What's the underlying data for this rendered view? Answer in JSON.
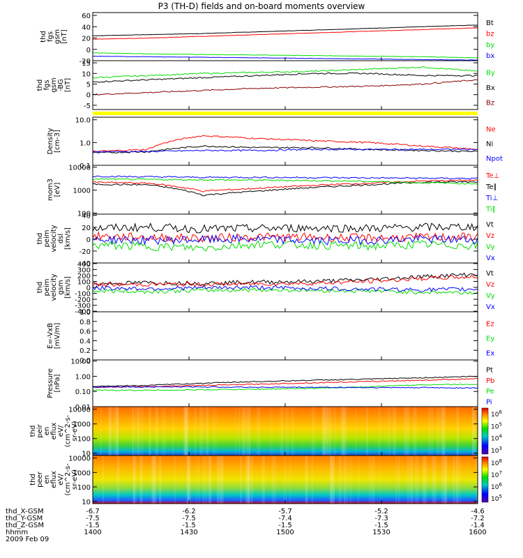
{
  "title": "P3 (TH-D) fields and on-board moments overview",
  "date_label": "2009 Feb 09",
  "colors": {
    "black": "#000000",
    "red": "#ff0000",
    "green": "#00dd00",
    "blue": "#0000ff",
    "darkred": "#880000",
    "yellow": "#ffff00"
  },
  "chart_data": [
    {
      "type": "line",
      "ylabel": [
        "thd",
        "fgs",
        "gsm",
        "[nT]"
      ],
      "yticks": [
        "60",
        "40",
        "20",
        "0",
        "-20"
      ],
      "legend": [
        {
          "label": "Bt",
          "color": "#000000"
        },
        {
          "label": "bz",
          "color": "#ff0000"
        },
        {
          "label": "by",
          "color": "#00dd00"
        },
        {
          "label": "bx",
          "color": "#0000ff"
        }
      ],
      "series": [
        {
          "name": "Bt",
          "color": "#000000",
          "values": [
            24,
            26,
            28,
            31,
            34,
            37,
            40,
            43
          ]
        },
        {
          "name": "bz",
          "color": "#ff0000",
          "values": [
            18,
            20,
            23,
            26,
            29,
            32,
            35,
            38
          ]
        },
        {
          "name": "by",
          "color": "#00dd00",
          "values": [
            -6,
            -8,
            -9,
            -10,
            -11,
            -12,
            -13,
            -15
          ]
        },
        {
          "name": "bx",
          "color": "#0000ff",
          "values": [
            -12,
            -13,
            -14,
            -15,
            -16,
            -17,
            -18,
            -19
          ]
        }
      ]
    },
    {
      "type": "line",
      "ylabel": [
        "thd",
        "fgs",
        "gsm",
        "-BG",
        "[nT]"
      ],
      "yticks": [
        "15",
        "10",
        "5",
        "0",
        "-5"
      ],
      "legend": [
        {
          "label": "By",
          "color": "#00dd00"
        },
        {
          "label": "Bx",
          "color": "#000000"
        },
        {
          "label": "Bz",
          "color": "#880000"
        }
      ],
      "series": [
        {
          "name": "By",
          "color": "#00dd00",
          "values": [
            8,
            9,
            10,
            10.5,
            11,
            12,
            13,
            11
          ]
        },
        {
          "name": "Bx",
          "color": "#000000",
          "values": [
            6,
            7,
            8,
            9,
            10,
            10,
            9,
            9
          ]
        },
        {
          "name": "Bz",
          "color": "#880000",
          "values": [
            0,
            1,
            2,
            3,
            3.5,
            4,
            5,
            7
          ]
        }
      ]
    },
    {
      "type": "line",
      "ylabel": [
        "Density",
        "[cm-3]"
      ],
      "yticks": [
        "10.0",
        "1.0",
        "0.1"
      ],
      "legend": [
        {
          "label": "Ne",
          "color": "#ff0000"
        },
        {
          "label": "Ni",
          "color": "#000000"
        },
        {
          "label": "Npot",
          "color": "#0000ff"
        }
      ],
      "series": [
        {
          "name": "Ne",
          "color": "#ff0000",
          "values": [
            0.4,
            0.5,
            2.0,
            1.5,
            1.2,
            1.0,
            0.7,
            0.5
          ]
        },
        {
          "name": "Ni",
          "color": "#000000",
          "values": [
            0.35,
            0.4,
            0.7,
            0.6,
            0.6,
            0.5,
            0.45,
            0.4
          ]
        },
        {
          "name": "Npot",
          "color": "#0000ff",
          "values": [
            0.4,
            0.4,
            0.45,
            0.45,
            0.5,
            0.5,
            0.5,
            0.5
          ]
        }
      ]
    },
    {
      "type": "line",
      "ylabel": [
        "mom3",
        "[eV]"
      ],
      "yticks": [
        "10000",
        "1000",
        "100"
      ],
      "legend": [
        {
          "label": "Te⊥",
          "color": "#ff0000"
        },
        {
          "label": "Te∥",
          "color": "#000000"
        },
        {
          "label": "Ti⊥",
          "color": "#0000ff"
        },
        {
          "label": "Ti∥",
          "color": "#00dd00"
        }
      ],
      "series": [
        {
          "name": "Te⊥",
          "color": "#ff0000",
          "values": [
            2200,
            2000,
            900,
            1200,
            1600,
            2000,
            2500,
            2700
          ]
        },
        {
          "name": "Te∥",
          "color": "#000000",
          "values": [
            1800,
            1700,
            600,
            900,
            1300,
            1700,
            2200,
            2300
          ]
        },
        {
          "name": "Ti⊥",
          "color": "#0000ff",
          "values": [
            4000,
            3800,
            3600,
            3600,
            3500,
            3400,
            3300,
            3200
          ]
        },
        {
          "name": "Ti∥",
          "color": "#00dd00",
          "values": [
            3000,
            2900,
            2800,
            2700,
            2600,
            2400,
            2100,
            1900
          ]
        }
      ]
    },
    {
      "type": "line",
      "ylabel": [
        "thd",
        "peim",
        "velocity",
        "dsl",
        "[km/s]"
      ],
      "yticks": [
        "40",
        "20",
        "0",
        "-20",
        "-40"
      ],
      "legend": [
        {
          "label": "Vt",
          "color": "#000000"
        },
        {
          "label": "Vz",
          "color": "#ff0000"
        },
        {
          "label": "Vy",
          "color": "#00dd00"
        },
        {
          "label": "Vx",
          "color": "#0000ff"
        }
      ],
      "series": [
        {
          "name": "Vt",
          "color": "#000000",
          "values": [
            18,
            20,
            17,
            18,
            19,
            18,
            20,
            21
          ]
        },
        {
          "name": "Vz",
          "color": "#ff0000",
          "values": [
            5,
            3,
            2,
            4,
            3,
            2,
            3,
            4
          ]
        },
        {
          "name": "Vy",
          "color": "#00dd00",
          "values": [
            -10,
            -12,
            -15,
            -8,
            -10,
            -12,
            -9,
            -11
          ]
        },
        {
          "name": "Vx",
          "color": "#0000ff",
          "values": [
            0,
            -2,
            -1,
            0,
            -3,
            -2,
            0,
            -1
          ]
        }
      ]
    },
    {
      "type": "line",
      "ylabel": [
        "thd",
        "peim",
        "velocity",
        "gsm",
        "[km/s]"
      ],
      "yticks": [
        "400",
        "300",
        "200",
        "100",
        "0",
        "-100",
        "-200",
        "-300",
        "-400"
      ],
      "legend": [
        {
          "label": "Vt",
          "color": "#000000"
        },
        {
          "label": "Vz",
          "color": "#ff0000"
        },
        {
          "label": "Vy",
          "color": "#00dd00"
        },
        {
          "label": "Vx",
          "color": "#0000ff"
        }
      ],
      "series": [
        {
          "name": "Vt",
          "color": "#000000",
          "values": [
            60,
            80,
            70,
            90,
            100,
            130,
            180,
            220
          ]
        },
        {
          "name": "Vz",
          "color": "#ff0000",
          "values": [
            40,
            50,
            50,
            60,
            70,
            100,
            150,
            180
          ]
        },
        {
          "name": "Vy",
          "color": "#00dd00",
          "values": [
            -60,
            -70,
            -50,
            -40,
            -50,
            -60,
            -80,
            -90
          ]
        },
        {
          "name": "Vx",
          "color": "#0000ff",
          "values": [
            -10,
            -20,
            -10,
            0,
            -20,
            -30,
            -40,
            -30
          ]
        }
      ]
    },
    {
      "type": "line",
      "ylabel": [
        "E=-VxB",
        "[mV/m]"
      ],
      "yticks": [
        "1.0",
        "0.8",
        "0.6",
        "0.4",
        "0.2",
        "0.0"
      ],
      "legend": [
        {
          "label": "Ez",
          "color": "#ff0000"
        },
        {
          "label": "Ey",
          "color": "#00dd00"
        },
        {
          "label": "Ex",
          "color": "#0000ff"
        }
      ],
      "series": []
    },
    {
      "type": "line",
      "ylabel": [
        "Pressure",
        "[nPa]"
      ],
      "yticks": [
        "10.00",
        "1.00",
        "0.10",
        "0.01"
      ],
      "legend": [
        {
          "label": "Pt",
          "color": "#000000"
        },
        {
          "label": "Pb",
          "color": "#ff0000"
        },
        {
          "label": "Pe",
          "color": "#00dd00"
        },
        {
          "label": "Pi",
          "color": "#0000ff"
        }
      ],
      "series": [
        {
          "name": "Pt",
          "color": "#000000",
          "values": [
            0.22,
            0.25,
            0.35,
            0.45,
            0.55,
            0.65,
            0.8,
            1.0
          ]
        },
        {
          "name": "Pb",
          "color": "#ff0000",
          "values": [
            0.19,
            0.21,
            0.25,
            0.3,
            0.37,
            0.45,
            0.55,
            0.7
          ]
        },
        {
          "name": "Pe",
          "color": "#00dd00",
          "values": [
            0.12,
            0.12,
            0.13,
            0.14,
            0.16,
            0.2,
            0.28,
            0.3
          ]
        },
        {
          "name": "Pi",
          "color": "#0000ff",
          "values": [
            0.2,
            0.2,
            0.2,
            0.19,
            0.19,
            0.18,
            0.18,
            0.17
          ]
        }
      ]
    },
    {
      "type": "heatmap",
      "ylabel": [
        "thd",
        "peir",
        "en",
        "eflux",
        "eV/",
        "(cm^2-s-",
        "sr-eV)"
      ],
      "yticks": [
        "10000",
        "1000",
        "100",
        "10"
      ],
      "colorbar_ticks": [
        "10^6",
        "10^5",
        "10^4",
        "10^3"
      ]
    },
    {
      "type": "heatmap",
      "ylabel": [
        "thd",
        "peer",
        "en",
        "eflux",
        "eV/",
        "(cm^2-s-",
        "sr-eV)"
      ],
      "yticks": [
        "10000",
        "1000",
        "100",
        "10"
      ],
      "colorbar_ticks": [
        "10^8",
        "10^7",
        "10^6",
        "10^5"
      ]
    }
  ],
  "xaxis": {
    "row_labels": [
      "thd_X-GSM",
      "thd_Y-GSM",
      "thd_Z-GSM",
      "hhmm"
    ],
    "columns": [
      [
        "-6.7",
        "-7.5",
        "-1.5",
        "1400"
      ],
      [
        "-6.2",
        "-7.5",
        "-1.5",
        "1430"
      ],
      [
        "-5.7",
        "-7.4",
        "-1.5",
        "1500"
      ],
      [
        "-5.2",
        "-7.3",
        "-1.5",
        "1530"
      ],
      [
        "-4.6",
        "-7.2",
        "-1.4",
        "1600"
      ]
    ]
  }
}
